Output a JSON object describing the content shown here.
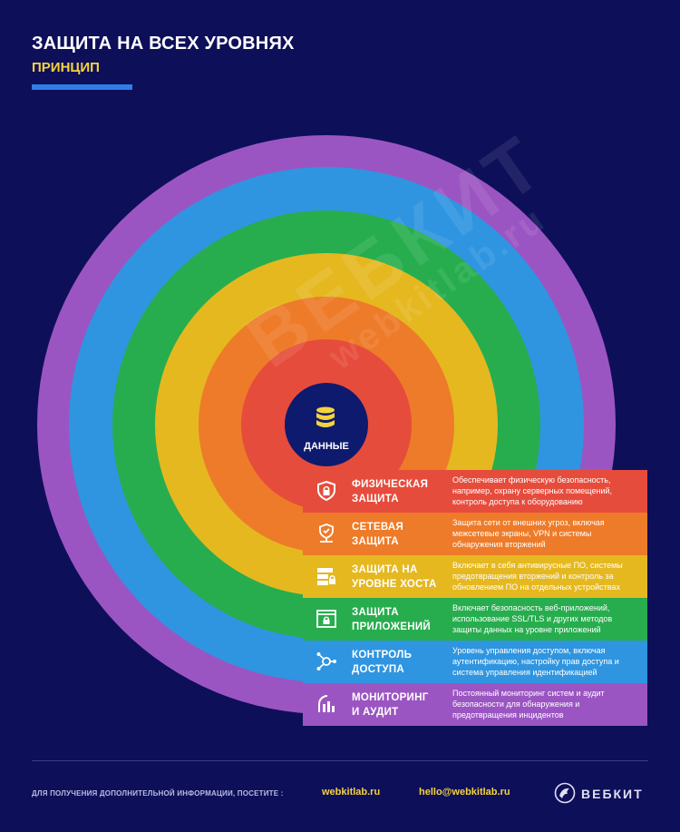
{
  "header": {
    "title": "ЗАЩИТА НА ВСЕХ УРОВНЯХ",
    "subtitle": "ПРИНЦИП"
  },
  "watermark": {
    "text": "ВЕБКИТ",
    "text2": "webkitlab.ru"
  },
  "core": {
    "label": "ДАННЫЕ",
    "icon": "database-icon",
    "color": "#0e1a6e"
  },
  "layers": [
    {
      "name": "ФИЗИЧЕСКАЯ\nЗАЩИТА",
      "icon": "shield-lock-icon",
      "color": "#e64c3c",
      "description": "Обеспечивает физическую безопасность, например, охрану серверных помещений, контроль доступа к оборудованию"
    },
    {
      "name": "СЕТЕВАЯ\nЗАЩИТА",
      "icon": "network-shield-icon",
      "color": "#ee7b29",
      "description": "Защита сети от внешних угроз, включая межсетевые экраны, VPN и системы обнаружения вторжений"
    },
    {
      "name": "ЗАЩИТА НА\nУРОВНЕ ХОСТА",
      "icon": "server-lock-icon",
      "color": "#e5b820",
      "description": "Включает в себя антивирусные ПО, системы предотвращения вторжений и контроль за обновлением ПО на отдельных устройствах"
    },
    {
      "name": "ЗАЩИТА\nПРИЛОЖЕНИЙ",
      "icon": "app-lock-icon",
      "color": "#27ad4e",
      "description": "Включает безопасность веб-приложений, использование SSL/TLS и других методов защиты данных на уровне приложений"
    },
    {
      "name": "КОНТРОЛЬ\nДОСТУПА",
      "icon": "access-hub-icon",
      "color": "#2f95e0",
      "description": "Уровень управления доступом, включая аутентификацию, настройку прав доступа и система управления идентификацией"
    },
    {
      "name": "МОНИТОРИНГ\nИ АУДИТ",
      "icon": "monitoring-chart-icon",
      "color": "#9b55c2",
      "description": "Постоянный мониторинг систем и аудит безопасности для обнаружения и предотвращения инцидентов"
    }
  ],
  "footer": {
    "label": "ДЛЯ ПОЛУЧЕНИЯ ДОПОЛНИТЕЛЬНОЙ ИНФОРМАЦИИ, ПОСЕТИТЕ :",
    "site": "webkitlab.ru",
    "email": "hello@webkitlab.ru",
    "brand": "ВЕБКИТ"
  }
}
